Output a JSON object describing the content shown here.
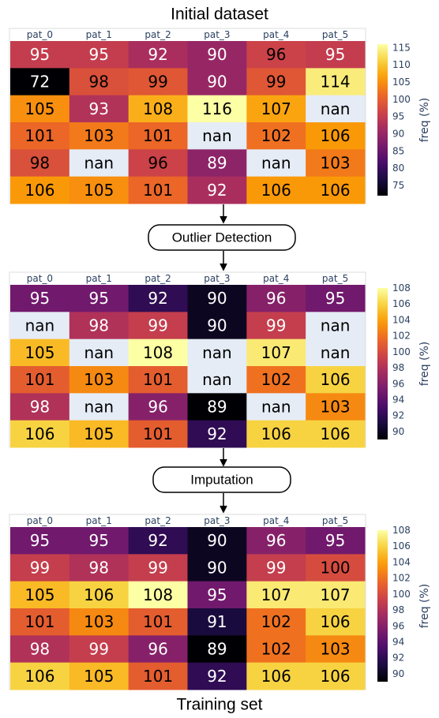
{
  "title": "Initial dataset",
  "footer": "Training set",
  "steps": [
    "Outlier Detection",
    "Imputation"
  ],
  "heatmaps": [
    {
      "columns": [
        "pat_0",
        "pat_1",
        "pat_2",
        "pat_3",
        "pat_4",
        "pat_5"
      ],
      "rows": [
        [
          95,
          95,
          92,
          90,
          96,
          95
        ],
        [
          72,
          98,
          99,
          90,
          99,
          114
        ],
        [
          105,
          93,
          108,
          116,
          107,
          "nan"
        ],
        [
          101,
          103,
          101,
          "nan",
          102,
          106
        ],
        [
          98,
          "nan",
          96,
          89,
          "nan",
          103
        ],
        [
          106,
          105,
          101,
          92,
          106,
          106
        ]
      ],
      "colorbar_title": "freq (%)",
      "colorbar_ticks": [
        75,
        80,
        85,
        90,
        95,
        100,
        105,
        110,
        115
      ]
    },
    {
      "columns": [
        "pat_0",
        "pat_1",
        "pat_2",
        "pat_3",
        "pat_4",
        "pat_5"
      ],
      "rows": [
        [
          95,
          95,
          92,
          90,
          96,
          95
        ],
        [
          "nan",
          98,
          99,
          90,
          99,
          "nan"
        ],
        [
          105,
          "nan",
          108,
          "nan",
          107,
          "nan"
        ],
        [
          101,
          103,
          101,
          "nan",
          102,
          106
        ],
        [
          98,
          "nan",
          96,
          89,
          "nan",
          103
        ],
        [
          106,
          105,
          101,
          92,
          106,
          106
        ]
      ],
      "colorbar_title": "freq (%)",
      "colorbar_ticks": [
        90,
        92,
        94,
        96,
        98,
        100,
        102,
        104,
        106,
        108
      ]
    },
    {
      "columns": [
        "pat_0",
        "pat_1",
        "pat_2",
        "pat_3",
        "pat_4",
        "pat_5"
      ],
      "rows": [
        [
          95,
          95,
          92,
          90,
          96,
          95
        ],
        [
          99,
          98,
          99,
          90,
          99,
          100
        ],
        [
          105,
          106,
          108,
          95,
          107,
          107
        ],
        [
          101,
          103,
          101,
          91,
          102,
          106
        ],
        [
          98,
          99,
          96,
          89,
          102,
          103
        ],
        [
          106,
          105,
          101,
          92,
          106,
          106
        ]
      ],
      "colorbar_title": "freq (%)",
      "colorbar_ticks": [
        90,
        92,
        94,
        96,
        98,
        100,
        102,
        104,
        106,
        108
      ]
    }
  ]
}
